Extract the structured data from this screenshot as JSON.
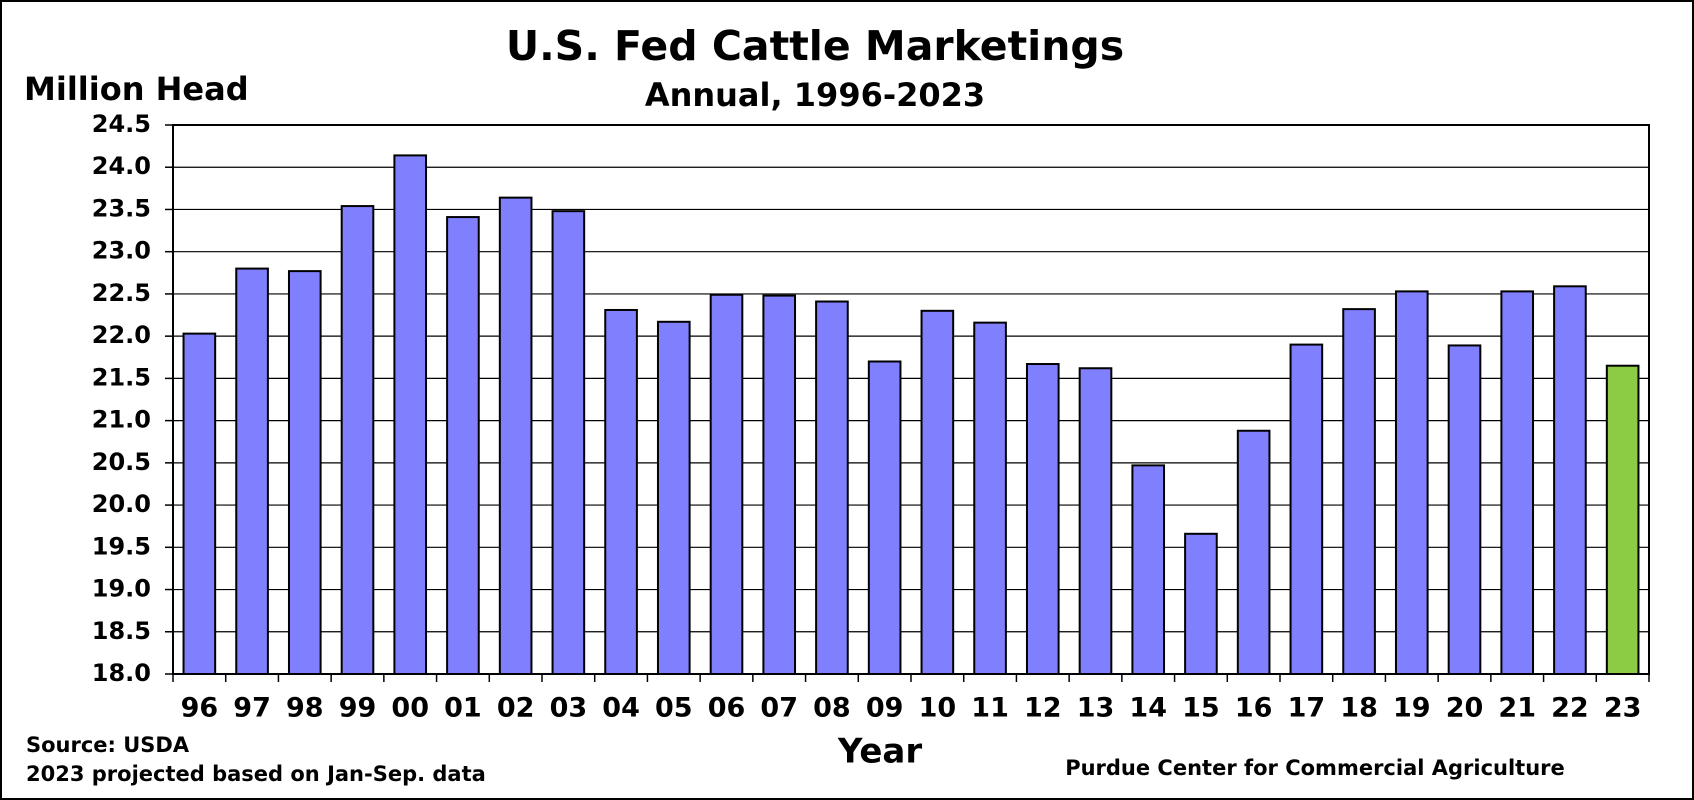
{
  "chart_data": {
    "type": "bar",
    "title": "U.S. Fed Cattle Marketings",
    "subtitle": "Annual, 1996-2023",
    "y_label": "Million Head",
    "x_label": "Year",
    "notes": [
      "Source:  USDA",
      "2023 projected based on Jan-Sep. data"
    ],
    "credit": "Purdue Center for Commercial Agriculture",
    "categories": [
      "96",
      "97",
      "98",
      "99",
      "00",
      "01",
      "02",
      "03",
      "04",
      "05",
      "06",
      "07",
      "08",
      "09",
      "10",
      "11",
      "12",
      "13",
      "14",
      "15",
      "16",
      "17",
      "18",
      "19",
      "20",
      "21",
      "22",
      "23"
    ],
    "values": [
      22.03,
      22.8,
      22.77,
      23.54,
      24.14,
      23.41,
      23.64,
      23.48,
      22.31,
      22.17,
      22.49,
      22.48,
      22.41,
      21.7,
      22.3,
      22.16,
      21.67,
      21.62,
      20.47,
      19.66,
      20.88,
      21.9,
      22.32,
      22.53,
      21.89,
      22.53,
      22.59,
      21.65
    ],
    "colors": [
      "#8080ff",
      "#8080ff",
      "#8080ff",
      "#8080ff",
      "#8080ff",
      "#8080ff",
      "#8080ff",
      "#8080ff",
      "#8080ff",
      "#8080ff",
      "#8080ff",
      "#8080ff",
      "#8080ff",
      "#8080ff",
      "#8080ff",
      "#8080ff",
      "#8080ff",
      "#8080ff",
      "#8080ff",
      "#8080ff",
      "#8080ff",
      "#8080ff",
      "#8080ff",
      "#8080ff",
      "#8080ff",
      "#8080ff",
      "#8080ff",
      "#8ccc44"
    ],
    "ylim": [
      18,
      24.5
    ],
    "yticks": [
      {
        "value": 18,
        "label": "18.0"
      },
      {
        "value": 18.5,
        "label": "18.5"
      },
      {
        "value": 19,
        "label": "19.0"
      },
      {
        "value": 19.5,
        "label": "19.5"
      },
      {
        "value": 20,
        "label": "20.0"
      },
      {
        "value": 20.5,
        "label": "20.5"
      },
      {
        "value": 21,
        "label": "21.0"
      },
      {
        "value": 21.5,
        "label": "21.5"
      },
      {
        "value": 22,
        "label": "22.0"
      },
      {
        "value": 22.5,
        "label": "22.5"
      },
      {
        "value": 23,
        "label": "23.0"
      },
      {
        "value": 23.5,
        "label": "23.5"
      },
      {
        "value": 24,
        "label": "24.0"
      },
      {
        "value": 24.5,
        "label": "24.5"
      }
    ],
    "grid": true
  }
}
